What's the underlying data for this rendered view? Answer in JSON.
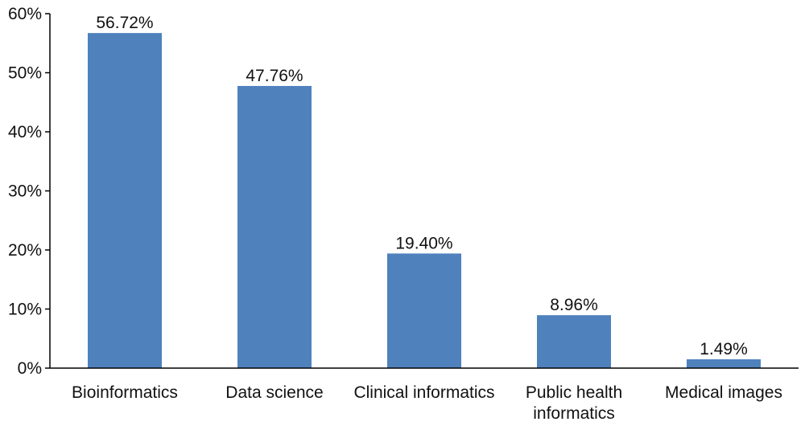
{
  "chart_data": {
    "type": "bar",
    "categories": [
      "Bioinformatics",
      "Data science",
      "Clinical informatics",
      "Public health informatics",
      "Medical images"
    ],
    "category_lines": [
      [
        "Bioinformatics"
      ],
      [
        "Data science"
      ],
      [
        "Clinical informatics"
      ],
      [
        "Public health",
        "informatics"
      ],
      [
        "Medical images"
      ]
    ],
    "values": [
      56.72,
      47.76,
      19.4,
      8.96,
      1.49
    ],
    "data_labels": [
      "56.72%",
      "47.76%",
      "19.40%",
      "8.96%",
      "1.49%"
    ],
    "title": "",
    "xlabel": "",
    "ylabel": "",
    "ylim": [
      0,
      60
    ],
    "yticks": [
      0,
      10,
      20,
      30,
      40,
      50,
      60
    ],
    "ytick_labels": [
      "0%",
      "10%",
      "20%",
      "30%",
      "40%",
      "50%",
      "60%"
    ],
    "grid": false,
    "legend": "none",
    "colors": {
      "bar": "#4f81bd",
      "axis": "#000000"
    }
  }
}
